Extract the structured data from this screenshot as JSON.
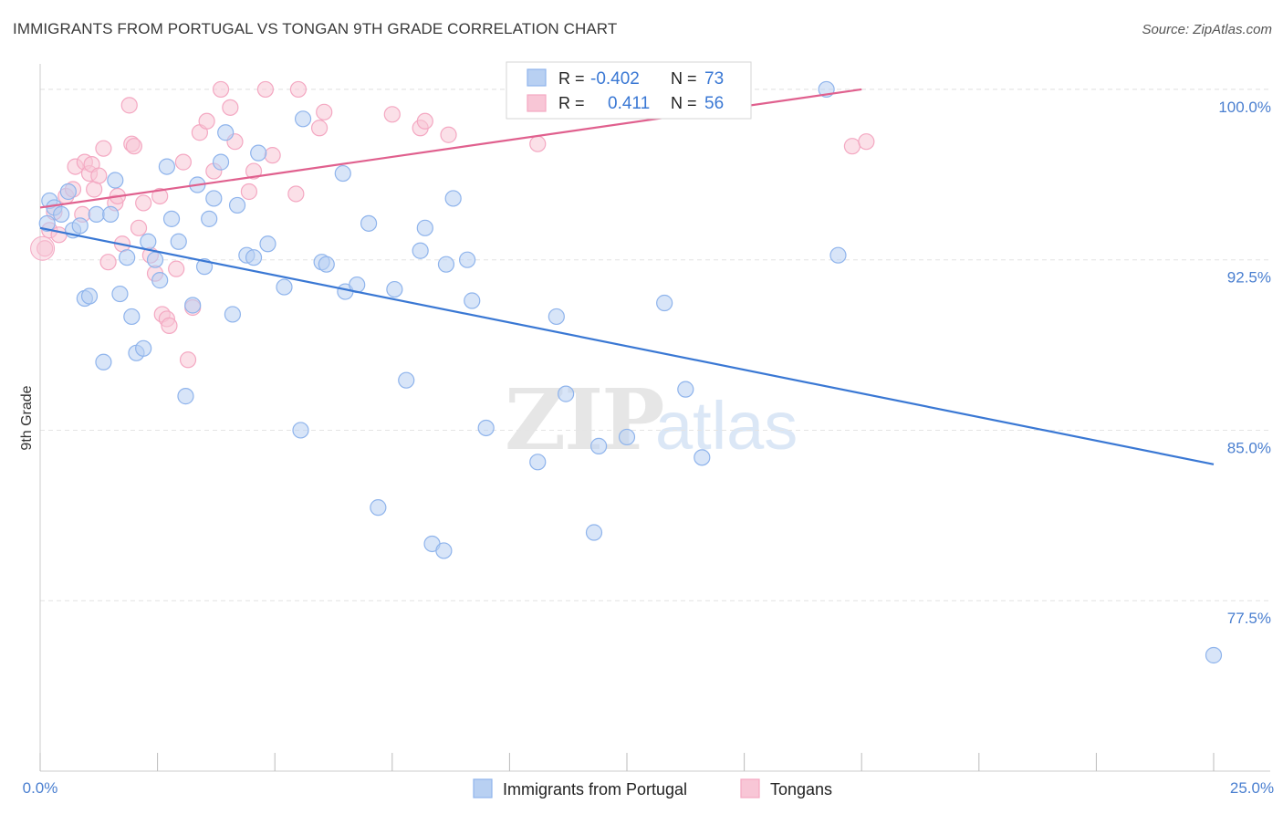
{
  "title": "IMMIGRANTS FROM PORTUGAL VS TONGAN 9TH GRADE CORRELATION CHART",
  "source": "Source: ZipAtlas.com",
  "watermark": {
    "zip": "ZIP",
    "atlas": "atlas"
  },
  "legend": {
    "rows": [
      {
        "r_label": "R =",
        "r_value": "-0.402",
        "n_label": "N =",
        "n_value": "73",
        "color": "#8fb4ec"
      },
      {
        "r_label": "R =",
        "r_value": "0.411",
        "n_label": "N =",
        "n_value": "56",
        "color": "#f4a8c2"
      }
    ]
  },
  "bottom_legend": [
    {
      "label": "Immigrants from Portugal",
      "color": "#8fb4ec"
    },
    {
      "label": "Tongans",
      "color": "#f4a8c2"
    }
  ],
  "colors": {
    "blue": "#3a78d4",
    "pink": "#e0608e",
    "blue_fill": "#b8d0f2",
    "pink_fill": "#f8c6d6",
    "tick": "#4a7fd0"
  },
  "chart_data": {
    "type": "scatter",
    "title": "IMMIGRANTS FROM PORTUGAL VS TONGAN 9TH GRADE CORRELATION CHART",
    "xlabel": "",
    "ylabel": "9th Grade",
    "xlim": [
      0,
      25
    ],
    "ylim": [
      70.0,
      100.8
    ],
    "x_tick_labels": [
      "0.0%",
      "25.0%"
    ],
    "y_ticks": [
      77.5,
      85.0,
      92.5,
      100.0
    ],
    "y_tick_labels": [
      "77.5%",
      "85.0%",
      "92.5%",
      "100.0%"
    ],
    "grid": "horizontal dashed",
    "legend_position": "top-center",
    "series": [
      {
        "name": "Immigrants from Portugal",
        "color": "#8fb4ec",
        "trend": {
          "x": [
            0.0,
            25.0
          ],
          "y": [
            93.9,
            83.5
          ]
        },
        "points": [
          [
            0.15,
            94.1
          ],
          [
            0.2,
            95.1
          ],
          [
            0.3,
            94.8
          ],
          [
            0.45,
            94.5
          ],
          [
            0.6,
            95.5
          ],
          [
            0.7,
            93.8
          ],
          [
            0.85,
            94.0
          ],
          [
            0.95,
            90.8
          ],
          [
            1.05,
            90.9
          ],
          [
            1.2,
            94.5
          ],
          [
            1.35,
            88.0
          ],
          [
            1.5,
            94.5
          ],
          [
            1.6,
            96.0
          ],
          [
            1.7,
            91.0
          ],
          [
            1.85,
            92.6
          ],
          [
            1.95,
            90.0
          ],
          [
            2.05,
            88.4
          ],
          [
            2.2,
            88.6
          ],
          [
            2.3,
            93.3
          ],
          [
            2.45,
            92.5
          ],
          [
            2.55,
            91.6
          ],
          [
            2.7,
            96.6
          ],
          [
            2.8,
            94.3
          ],
          [
            2.95,
            93.3
          ],
          [
            3.1,
            86.5
          ],
          [
            3.25,
            90.5
          ],
          [
            3.35,
            95.8
          ],
          [
            3.5,
            92.2
          ],
          [
            3.6,
            94.3
          ],
          [
            3.7,
            95.2
          ],
          [
            3.85,
            96.8
          ],
          [
            3.95,
            98.1
          ],
          [
            4.1,
            90.1
          ],
          [
            4.2,
            94.9
          ],
          [
            4.4,
            92.7
          ],
          [
            4.55,
            92.6
          ],
          [
            4.65,
            97.2
          ],
          [
            4.85,
            93.2
          ],
          [
            5.2,
            91.3
          ],
          [
            5.55,
            85.0
          ],
          [
            5.6,
            98.7
          ],
          [
            6.0,
            92.4
          ],
          [
            6.1,
            92.3
          ],
          [
            6.45,
            96.3
          ],
          [
            6.5,
            91.1
          ],
          [
            6.75,
            91.4
          ],
          [
            7.0,
            94.1
          ],
          [
            7.2,
            81.6
          ],
          [
            7.55,
            91.2
          ],
          [
            7.8,
            87.2
          ],
          [
            8.1,
            92.9
          ],
          [
            8.2,
            93.9
          ],
          [
            8.35,
            80.0
          ],
          [
            8.6,
            79.7
          ],
          [
            8.65,
            92.3
          ],
          [
            8.8,
            95.2
          ],
          [
            9.1,
            92.5
          ],
          [
            9.2,
            90.7
          ],
          [
            9.5,
            85.1
          ],
          [
            10.6,
            83.6
          ],
          [
            11.0,
            90.0
          ],
          [
            11.2,
            86.6
          ],
          [
            11.8,
            80.5
          ],
          [
            11.9,
            84.3
          ],
          [
            12.5,
            84.7
          ],
          [
            13.3,
            90.6
          ],
          [
            13.75,
            86.8
          ],
          [
            13.9,
            100.0
          ],
          [
            14.1,
            83.8
          ],
          [
            16.75,
            100.0
          ],
          [
            17.0,
            92.7
          ],
          [
            25.0,
            75.1
          ]
        ]
      },
      {
        "name": "Tongans",
        "color": "#f4a8c2",
        "trend": {
          "x": [
            0.0,
            17.5
          ],
          "y": [
            94.8,
            100.0
          ]
        },
        "points": [
          [
            0.1,
            93.0
          ],
          [
            0.2,
            93.8
          ],
          [
            0.3,
            94.6
          ],
          [
            0.4,
            93.6
          ],
          [
            0.55,
            95.3
          ],
          [
            0.7,
            95.6
          ],
          [
            0.75,
            96.6
          ],
          [
            0.9,
            94.5
          ],
          [
            0.95,
            96.8
          ],
          [
            1.05,
            96.3
          ],
          [
            1.1,
            96.7
          ],
          [
            1.15,
            95.6
          ],
          [
            1.25,
            96.2
          ],
          [
            1.35,
            97.4
          ],
          [
            1.45,
            92.4
          ],
          [
            1.6,
            95.0
          ],
          [
            1.65,
            95.3
          ],
          [
            1.75,
            93.2
          ],
          [
            1.9,
            99.3
          ],
          [
            1.95,
            97.6
          ],
          [
            2.0,
            97.5
          ],
          [
            2.1,
            93.9
          ],
          [
            2.2,
            95.0
          ],
          [
            2.35,
            92.7
          ],
          [
            2.45,
            91.9
          ],
          [
            2.55,
            95.3
          ],
          [
            2.6,
            90.1
          ],
          [
            2.7,
            89.9
          ],
          [
            2.75,
            89.6
          ],
          [
            2.9,
            92.1
          ],
          [
            3.05,
            96.8
          ],
          [
            3.15,
            88.1
          ],
          [
            3.25,
            90.4
          ],
          [
            3.4,
            98.1
          ],
          [
            3.55,
            98.6
          ],
          [
            3.7,
            96.4
          ],
          [
            3.85,
            100.0
          ],
          [
            4.05,
            99.2
          ],
          [
            4.15,
            97.7
          ],
          [
            4.45,
            95.5
          ],
          [
            4.55,
            96.4
          ],
          [
            4.8,
            100.0
          ],
          [
            4.95,
            97.1
          ],
          [
            5.45,
            95.4
          ],
          [
            5.5,
            100.0
          ],
          [
            5.95,
            98.3
          ],
          [
            6.05,
            99.0
          ],
          [
            7.5,
            98.9
          ],
          [
            8.1,
            98.3
          ],
          [
            8.2,
            98.6
          ],
          [
            8.7,
            98.0
          ],
          [
            10.6,
            97.6
          ],
          [
            17.3,
            97.5
          ],
          [
            17.6,
            97.7
          ]
        ]
      }
    ]
  }
}
